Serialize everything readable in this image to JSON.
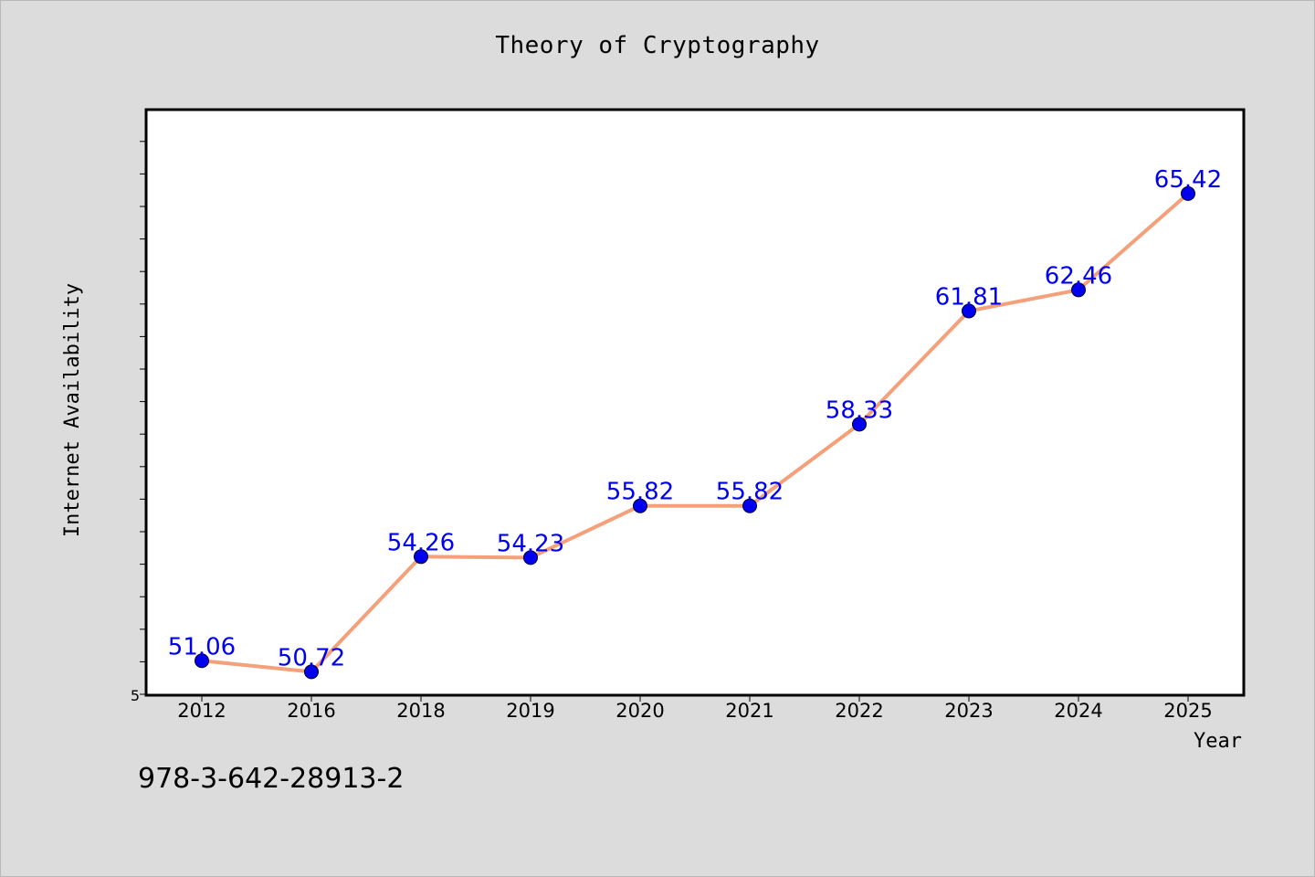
{
  "chart_data": {
    "type": "line",
    "title": "Theory of Cryptography",
    "xlabel": "Year",
    "ylabel": "Internet Availability",
    "categories": [
      "2012",
      "2016",
      "2018",
      "2019",
      "2020",
      "2021",
      "2022",
      "2023",
      "2024",
      "2025"
    ],
    "values": [
      51.06,
      50.72,
      54.26,
      54.23,
      55.82,
      55.82,
      58.33,
      61.81,
      62.46,
      65.42
    ],
    "data_labels": [
      "51.06",
      "50.72",
      "54.26",
      "54.23",
      "55.82",
      "55.82",
      "58.33",
      "61.81",
      "62.46",
      "65.42"
    ],
    "y_tick_labels": [
      "5"
    ],
    "ylim": [
      50.0,
      68.0
    ],
    "grid": false,
    "legend": "none",
    "colors": {
      "line": "#f4a07a",
      "marker": "#0000ee",
      "data_label": "#0000ee",
      "plot_background": "#ffffff",
      "page_background": "#dcdcdc"
    }
  },
  "footer": {
    "isbn": "978-3-642-28913-2"
  }
}
